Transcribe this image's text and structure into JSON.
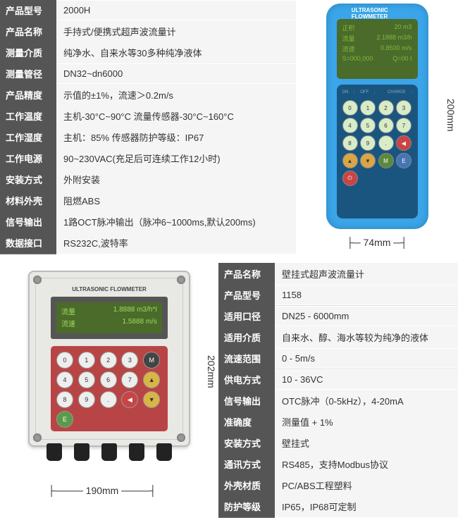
{
  "product1": {
    "specs": [
      {
        "label": "产品型号",
        "value": "2000H"
      },
      {
        "label": "产品名称",
        "value": "手持式/便携式超声波流量计"
      },
      {
        "label": "测量介质",
        "value": "纯净水、自来水等30多种纯净液体"
      },
      {
        "label": "测量管径",
        "value": "DN32~dn6000"
      },
      {
        "label": "产品精度",
        "value": "示值的±1%，流速＞0.2m/s"
      },
      {
        "label": "工作温度",
        "value": "主机-30°C~90°C  流量传感器-30°C~160°C"
      },
      {
        "label": "工作湿度",
        "value": "主机：85%  传感器防护等级：IP67"
      },
      {
        "label": "工作电源",
        "value": "90~230VAC(充足后可连续工作12小时)"
      },
      {
        "label": "安装方式",
        "value": "外附安装"
      },
      {
        "label": "材料外壳",
        "value": "阻燃ABS"
      },
      {
        "label": "信号输出",
        "value": "1路OCT脉冲输出（脉冲6~1000ms,默认200ms)"
      },
      {
        "label": "数据接口",
        "value": "RS232C,波特率"
      }
    ],
    "device_title": "ULTRASONIC FLOWMETER",
    "screen": [
      {
        "l": "正积",
        "r": "20 m3"
      },
      {
        "l": "流量",
        "r": "2.1888 m3/h"
      },
      {
        "l": "流速",
        "r": "0.8500 m/s"
      },
      {
        "l": "S=000,000",
        "r": "Q=00 I"
      }
    ],
    "charge_label": "CHARGE",
    "dim_h": "74mm",
    "dim_v": "200mm"
  },
  "product2": {
    "specs": [
      {
        "label": "产品名称",
        "value": "壁挂式超声波流量计"
      },
      {
        "label": "产品型号",
        "value": "1158"
      },
      {
        "label": "适用口径",
        "value": "DN25 - 6000mm"
      },
      {
        "label": "适用介质",
        "value": "自来水、醇、海水等较为纯净的液体"
      },
      {
        "label": "流速范围",
        "value": "0 - 5m/s"
      },
      {
        "label": "供电方式",
        "value": "10 - 36VC"
      },
      {
        "label": "信号输出",
        "value": "OTC脉冲（0-5kHz），4-20mA"
      },
      {
        "label": "准确度",
        "value": "测量值 + 1%"
      },
      {
        "label": "安装方式",
        "value": "壁挂式"
      },
      {
        "label": "通讯方式",
        "value": "RS485，支持Modbus协议"
      },
      {
        "label": "外壳材质",
        "value": "PC/ABS工程塑料"
      },
      {
        "label": "防护等级",
        "value": "IP65，IP68可定制"
      }
    ],
    "device_title": "ULTRASONIC FLOWMETER",
    "screen": [
      {
        "l": "流量",
        "r": "1.8888 m3/h*I"
      },
      {
        "l": "流速",
        "r": "1.5888 m/s"
      }
    ],
    "dim_h": "190mm",
    "dim_v": "202mm"
  }
}
